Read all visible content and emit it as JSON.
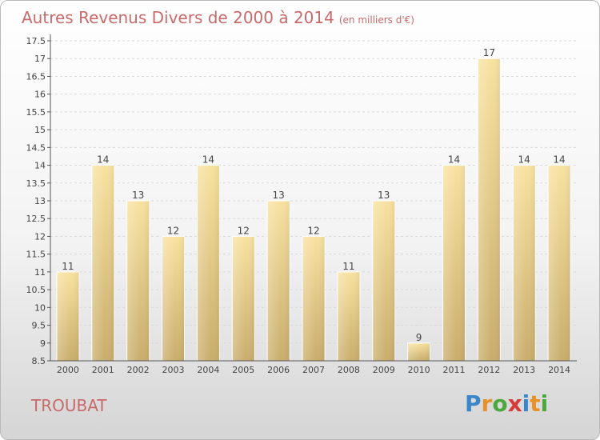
{
  "title": "Autres Revenus Divers de 2000 à 2014",
  "title_unit": "(en milliers d'€)",
  "location": "TROUBAT",
  "logo": {
    "text": "Proxiti",
    "letters": [
      {
        "ch": "P",
        "color": "#3a86c8"
      },
      {
        "ch": "r",
        "color": "#e8902a"
      },
      {
        "ch": "o",
        "color": "#4aa83c"
      },
      {
        "ch": "x",
        "color": "#d63a3a"
      },
      {
        "ch": "i",
        "color": "#3a86c8"
      },
      {
        "ch": "t",
        "color": "#e8902a"
      },
      {
        "ch": "i",
        "color": "#4aa83c"
      }
    ]
  },
  "colors": {
    "bar_light": "#f8e2a0",
    "bar_dark": "#c9ad6c",
    "grid": "#d9d9d9",
    "axis": "#555555",
    "label": "#444444"
  },
  "chart_data": {
    "type": "bar",
    "categories": [
      "2000",
      "2001",
      "2002",
      "2003",
      "2004",
      "2005",
      "2006",
      "2007",
      "2008",
      "2009",
      "2010",
      "2011",
      "2012",
      "2013",
      "2014"
    ],
    "values": [
      11,
      14,
      13,
      12,
      14,
      12,
      13,
      12,
      11,
      13,
      9,
      14,
      17,
      14,
      14
    ],
    "data_labels": [
      "11",
      "14",
      "13",
      "12",
      "14",
      "12",
      "13",
      "12",
      "11",
      "13",
      "9",
      "14",
      "17",
      "14",
      "14"
    ],
    "ylim": [
      8.5,
      17.5
    ],
    "yticks": [
      8.5,
      9,
      9.5,
      10,
      10.5,
      11,
      11.5,
      12,
      12.5,
      13,
      13.5,
      14,
      14.5,
      15,
      15.5,
      16,
      16.5,
      17,
      17.5
    ],
    "ytick_labels": [
      "8.5",
      "9",
      "9.5",
      "10",
      "10.5",
      "11",
      "11.5",
      "12",
      "12.5",
      "13",
      "13.5",
      "14",
      "14.5",
      "15",
      "15.5",
      "16",
      "16.5",
      "17",
      "17.5"
    ],
    "grid": true
  }
}
